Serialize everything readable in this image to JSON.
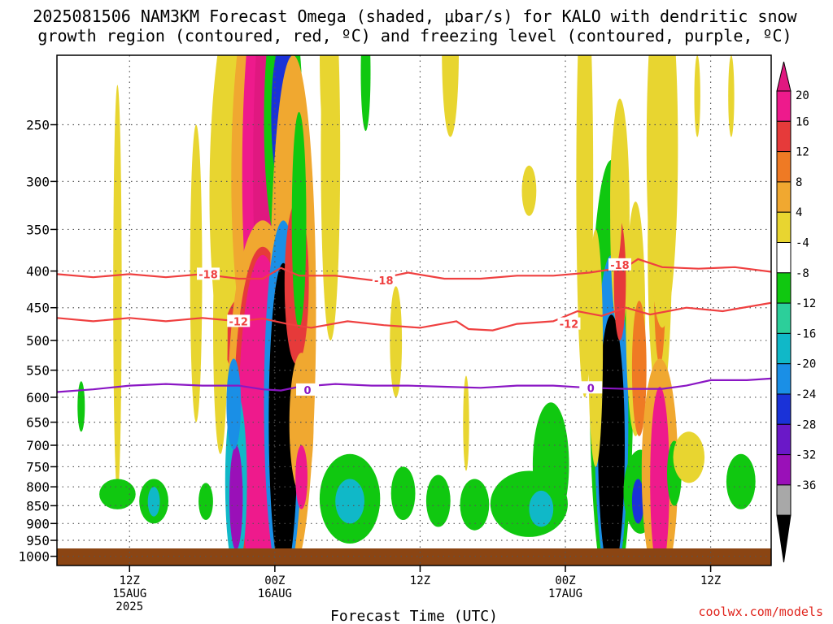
{
  "title": {
    "line1": "2025081506 NAM3KM Forecast Omega (shaded, μbar/s) for KALO with dendritic snow",
    "line2": "growth region (contoured, red, ºC) and freezing level (contoured, purple, ºC)"
  },
  "xlabel": "Forecast Time (UTC)",
  "credit": "coolwx.com/models",
  "credit_color": "#e0241c",
  "colors": {
    "axis": "#000000",
    "ground": "#8b4513",
    "dgz_contour": "#ef4040",
    "freezing_contour": "#8a16c4"
  },
  "chart_data": {
    "type": "heatmap",
    "description_field": "omega",
    "units": "μbar/s",
    "x_axis": {
      "unit": "hours from 2025081506",
      "range": [
        0,
        59
      ],
      "ticks": [
        {
          "hour": 6,
          "label": [
            "12Z",
            "15AUG",
            "2025"
          ]
        },
        {
          "hour": 18,
          "label": [
            "00Z",
            "16AUG"
          ]
        },
        {
          "hour": 30,
          "label": [
            "12Z"
          ]
        },
        {
          "hour": 42,
          "label": [
            "00Z",
            "17AUG"
          ]
        },
        {
          "hour": 54,
          "label": [
            "12Z"
          ]
        }
      ]
    },
    "y_axis": {
      "unit": "hPa",
      "scale": "log",
      "inverted": true,
      "range": [
        200,
        1030
      ],
      "ticks": [
        250,
        300,
        350,
        400,
        450,
        500,
        550,
        600,
        650,
        700,
        750,
        800,
        850,
        900,
        950,
        1000
      ]
    },
    "grid": true,
    "colorbar": {
      "placement": "right",
      "levels": [
        {
          "label": "20",
          "color": "#ee1a8c"
        },
        {
          "label": "16",
          "color": "#e63a3a"
        },
        {
          "label": "12",
          "color": "#ef7a24"
        },
        {
          "label": "8",
          "color": "#f0a830"
        },
        {
          "label": "4",
          "color": "#e8d530"
        },
        {
          "label": "-4",
          "color": "#ffffff"
        },
        {
          "label": "-8",
          "color": "#10c810"
        },
        {
          "label": "-12",
          "color": "#2ccf9a"
        },
        {
          "label": "-16",
          "color": "#10b8c8"
        },
        {
          "label": "-20",
          "color": "#1a8fe6"
        },
        {
          "label": "-24",
          "color": "#1a32d8"
        },
        {
          "label": "-28",
          "color": "#6a18c8"
        },
        {
          "label": "-32",
          "color": "#9a10b8"
        },
        {
          "label": "-36",
          "color": "#a8a8a8"
        }
      ],
      "top_arrow_color": "#e01880",
      "bottom_arrow_color": "#000000"
    },
    "omega_blobs": [
      {
        "hour": 15.8,
        "p": 350,
        "dh": 3.2,
        "dp": 300,
        "value": 4
      },
      {
        "hour": 15.8,
        "p": 500,
        "dh": 2.0,
        "dp": 70,
        "value": 16
      },
      {
        "hour": 17.0,
        "p": 320,
        "dh": 2.6,
        "dp": 260,
        "value": 8
      },
      {
        "hour": 17.2,
        "p": 330,
        "dh": 1.9,
        "dp": 240,
        "value": 20
      },
      {
        "hour": 17.6,
        "p": 330,
        "dh": 1.4,
        "dp": 230,
        "value": 40
      },
      {
        "hour": 18.7,
        "p": 270,
        "dh": 1.6,
        "dp": 110,
        "value": -8
      },
      {
        "hour": 18.7,
        "p": 250,
        "dh": 1.0,
        "dp": 60,
        "value": -20
      },
      {
        "hour": 17.0,
        "p": 760,
        "dh": 2.9,
        "dp": 420,
        "value": 8
      },
      {
        "hour": 17.0,
        "p": 760,
        "dh": 2.4,
        "dp": 390,
        "value": 16
      },
      {
        "hour": 17.0,
        "p": 760,
        "dh": 2.0,
        "dp": 380,
        "value": 22
      },
      {
        "hour": 19.5,
        "p": 620,
        "dh": 1.9,
        "dp": 420,
        "value": 8
      },
      {
        "hour": 18.7,
        "p": 720,
        "dh": 1.6,
        "dp": 380,
        "value": -16
      },
      {
        "hour": 18.7,
        "p": 730,
        "dh": 1.2,
        "dp": 340,
        "value": -40
      },
      {
        "hour": 19.8,
        "p": 430,
        "dh": 1.0,
        "dp": 110,
        "value": 16
      },
      {
        "hour": 20.2,
        "p": 670,
        "dh": 1.0,
        "dp": 150,
        "value": 8
      },
      {
        "hour": 20.2,
        "p": 780,
        "dh": 0.5,
        "dp": 80,
        "value": 22
      },
      {
        "hour": 20.0,
        "p": 360,
        "dh": 0.6,
        "dp": 120,
        "value": -8
      },
      {
        "hour": 14.8,
        "p": 820,
        "dh": 0.9,
        "dp": 230,
        "value": -12
      },
      {
        "hour": 14.8,
        "p": 840,
        "dh": 0.55,
        "dp": 140,
        "value": -28
      },
      {
        "hour": 14.6,
        "p": 620,
        "dh": 0.6,
        "dp": 90,
        "value": -16
      },
      {
        "hour": 13.5,
        "p": 520,
        "dh": 0.6,
        "dp": 200,
        "value": 4
      },
      {
        "hour": 11.5,
        "p": 450,
        "dh": 0.5,
        "dp": 200,
        "value": 4
      },
      {
        "hour": 12.3,
        "p": 840,
        "dh": 0.6,
        "dp": 50,
        "value": -8
      },
      {
        "hour": 5.0,
        "p": 520,
        "dh": 0.35,
        "dp": 300,
        "value": 4
      },
      {
        "hour": 2.0,
        "p": 620,
        "dh": 0.3,
        "dp": 50,
        "value": -8
      },
      {
        "hour": 5.0,
        "p": 820,
        "dh": 1.5,
        "dp": 40,
        "value": -8
      },
      {
        "hour": 8.0,
        "p": 840,
        "dh": 1.2,
        "dp": 60,
        "value": -8
      },
      {
        "hour": 8.0,
        "p": 840,
        "dh": 0.5,
        "dp": 40,
        "value": -12
      },
      {
        "hour": 22.6,
        "p": 300,
        "dh": 0.8,
        "dp": 200,
        "value": 4
      },
      {
        "hour": 22.3,
        "p": 190,
        "dh": 0.6,
        "dp": 80,
        "value": 4
      },
      {
        "hour": 25.5,
        "p": 215,
        "dh": 0.4,
        "dp": 40,
        "value": -8
      },
      {
        "hour": 24.2,
        "p": 840,
        "dh": 2.5,
        "dp": 120,
        "value": -8
      },
      {
        "hour": 24.2,
        "p": 840,
        "dh": 1.2,
        "dp": 60,
        "value": -12
      },
      {
        "hour": 28.6,
        "p": 820,
        "dh": 1.0,
        "dp": 70,
        "value": -8
      },
      {
        "hour": 31.5,
        "p": 840,
        "dh": 1.0,
        "dp": 70,
        "value": -8
      },
      {
        "hour": 34.5,
        "p": 850,
        "dh": 1.2,
        "dp": 70,
        "value": -8
      },
      {
        "hour": 39.0,
        "p": 850,
        "dh": 3.2,
        "dp": 90,
        "value": -8
      },
      {
        "hour": 40.8,
        "p": 760,
        "dh": 1.5,
        "dp": 150,
        "value": -8
      },
      {
        "hour": 40.0,
        "p": 860,
        "dh": 1.0,
        "dp": 50,
        "value": -12
      },
      {
        "hour": 45.8,
        "p": 720,
        "dh": 1.8,
        "dp": 440,
        "value": -8
      },
      {
        "hour": 45.8,
        "p": 740,
        "dh": 1.4,
        "dp": 360,
        "value": -16
      },
      {
        "hour": 45.8,
        "p": 760,
        "dh": 1.1,
        "dp": 300,
        "value": -40
      },
      {
        "hour": 46.5,
        "p": 360,
        "dh": 0.8,
        "dp": 130,
        "value": 4
      },
      {
        "hour": 46.5,
        "p": 420,
        "dh": 0.5,
        "dp": 80,
        "value": 16
      },
      {
        "hour": 46.2,
        "p": 320,
        "dh": 0.5,
        "dp": 70,
        "value": 4
      },
      {
        "hour": 47.8,
        "p": 500,
        "dh": 0.8,
        "dp": 180,
        "value": 4
      },
      {
        "hour": 48.1,
        "p": 560,
        "dh": 0.6,
        "dp": 120,
        "value": 12
      },
      {
        "hour": 49.8,
        "p": 420,
        "dh": 1.0,
        "dp": 200,
        "value": 4
      },
      {
        "hour": 49.8,
        "p": 420,
        "dh": 0.5,
        "dp": 120,
        "value": 12
      },
      {
        "hour": 50.0,
        "p": 310,
        "dh": 1.3,
        "dp": 170,
        "value": 4
      },
      {
        "hour": 48.2,
        "p": 820,
        "dh": 1.4,
        "dp": 110,
        "value": -8
      },
      {
        "hour": 48.0,
        "p": 840,
        "dh": 0.5,
        "dp": 60,
        "value": -20
      },
      {
        "hour": 49.8,
        "p": 810,
        "dh": 1.5,
        "dp": 280,
        "value": 8
      },
      {
        "hour": 49.8,
        "p": 820,
        "dh": 0.8,
        "dp": 240,
        "value": 22
      },
      {
        "hour": 51.0,
        "p": 770,
        "dh": 0.6,
        "dp": 80,
        "value": -8
      },
      {
        "hour": 52.2,
        "p": 730,
        "dh": 1.3,
        "dp": 60,
        "value": 4
      },
      {
        "hour": 56.5,
        "p": 790,
        "dh": 1.2,
        "dp": 70,
        "value": -8
      },
      {
        "hour": 44.5,
        "p": 550,
        "dh": 0.6,
        "dp": 200,
        "value": 4
      },
      {
        "hour": 32.5,
        "p": 200,
        "dh": 0.7,
        "dp": 60,
        "value": 4
      },
      {
        "hour": 43.6,
        "p": 300,
        "dh": 0.7,
        "dp": 300,
        "value": 4
      },
      {
        "hour": 39.0,
        "p": 310,
        "dh": 0.6,
        "dp": 25,
        "value": 4
      },
      {
        "hour": 52.9,
        "p": 230,
        "dh": 0.25,
        "dp": 30,
        "value": 4
      },
      {
        "hour": 55.7,
        "p": 230,
        "dh": 0.25,
        "dp": 30,
        "value": 4
      },
      {
        "hour": 33.8,
        "p": 660,
        "dh": 0.25,
        "dp": 100,
        "value": 4
      },
      {
        "hour": 28.0,
        "p": 510,
        "dh": 0.5,
        "dp": 90,
        "value": 4
      }
    ],
    "contours": [
      {
        "label": "-18",
        "color_key": "dgz_contour",
        "points": [
          [
            0,
            404
          ],
          [
            3,
            408
          ],
          [
            6,
            404
          ],
          [
            9,
            408
          ],
          [
            12,
            404
          ],
          [
            15,
            410
          ],
          [
            17,
            410
          ],
          [
            18.5,
            396
          ],
          [
            20,
            406
          ],
          [
            23,
            406
          ],
          [
            26,
            412
          ],
          [
            29,
            402
          ],
          [
            32,
            410
          ],
          [
            35,
            410
          ],
          [
            38,
            406
          ],
          [
            41,
            406
          ],
          [
            44,
            402
          ],
          [
            47,
            395
          ],
          [
            48,
            385
          ],
          [
            50,
            395
          ],
          [
            53,
            397
          ],
          [
            56,
            395
          ],
          [
            59,
            401
          ]
        ],
        "label_positions": [
          [
            12.5,
            404
          ],
          [
            27,
            412
          ],
          [
            46.5,
            392
          ]
        ]
      },
      {
        "label": "-12",
        "color_key": "dgz_contour",
        "points": [
          [
            0,
            465
          ],
          [
            3,
            470
          ],
          [
            6,
            465
          ],
          [
            9,
            470
          ],
          [
            12,
            465
          ],
          [
            15,
            470
          ],
          [
            17,
            466
          ],
          [
            19,
            474
          ],
          [
            21,
            480
          ],
          [
            24,
            470
          ],
          [
            27,
            476
          ],
          [
            30,
            480
          ],
          [
            33,
            470
          ],
          [
            34,
            482
          ],
          [
            36,
            484
          ],
          [
            38,
            474
          ],
          [
            41,
            470
          ],
          [
            43,
            455
          ],
          [
            45,
            462
          ],
          [
            47,
            450
          ],
          [
            49,
            460
          ],
          [
            52,
            450
          ],
          [
            55,
            455
          ],
          [
            59,
            443
          ]
        ],
        "label_positions": [
          [
            15,
            470
          ],
          [
            42.3,
            474
          ]
        ]
      },
      {
        "label": "0",
        "color_key": "freezing_contour",
        "points": [
          [
            0,
            590
          ],
          [
            3,
            585
          ],
          [
            6,
            578
          ],
          [
            9,
            575
          ],
          [
            12,
            578
          ],
          [
            15,
            578
          ],
          [
            17,
            585
          ],
          [
            18.5,
            587
          ],
          [
            20,
            580
          ],
          [
            23,
            575
          ],
          [
            26,
            578
          ],
          [
            29,
            578
          ],
          [
            32,
            580
          ],
          [
            35,
            582
          ],
          [
            38,
            578
          ],
          [
            41,
            578
          ],
          [
            44,
            582
          ],
          [
            47,
            584
          ],
          [
            50,
            584
          ],
          [
            52,
            578
          ],
          [
            54,
            568
          ],
          [
            57,
            568
          ],
          [
            59,
            565
          ]
        ],
        "label_positions": [
          [
            20.7,
            586
          ],
          [
            44.1,
            582
          ]
        ]
      }
    ],
    "ground_level_hpa": 975
  }
}
